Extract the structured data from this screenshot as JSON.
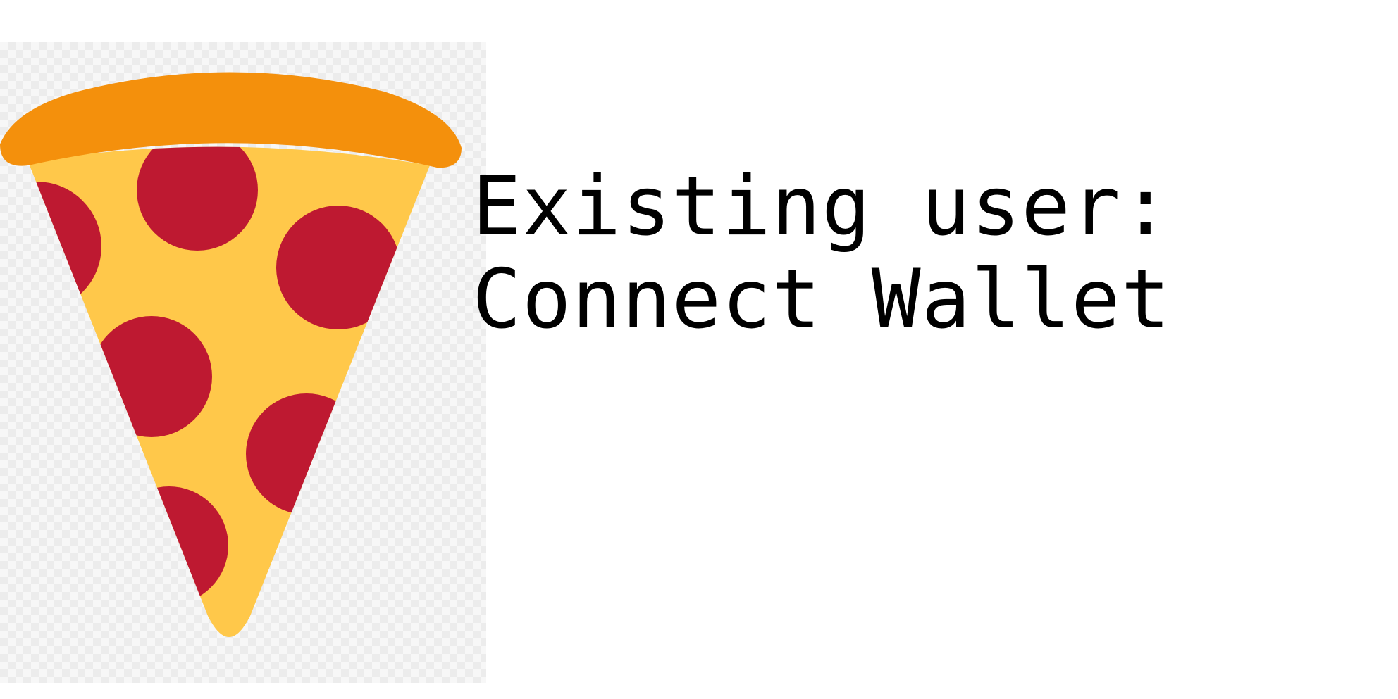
{
  "logo": {
    "icon": "pizza-slice-icon",
    "colors": {
      "crust": "#f4900c",
      "cheese": "#ffc84a",
      "pepperoni": "#be1931"
    }
  },
  "login": {
    "line1": "Existing user:",
    "line2": "Connect Wallet"
  }
}
